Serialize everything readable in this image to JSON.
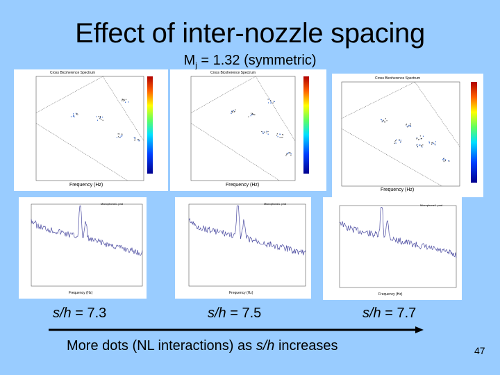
{
  "slide": {
    "title": "Effect of inter-nozzle spacing",
    "subtitle_main": "M",
    "subtitle_sub": "j",
    "subtitle_rest": " = 1.32 (symmetric)",
    "page_number": "47"
  },
  "bispectra": [
    {
      "plot_title": "Cross Bicoherence Spectrum",
      "xlabel": "Frequency (Hz)",
      "ylabel": "Frequency (Hz)"
    },
    {
      "plot_title": "Cross Bicoherence Spectrum",
      "xlabel": "Frequency (Hz)",
      "ylabel": "Frequency (Hz)"
    },
    {
      "plot_title": "Cross Bicoherence Spectrum",
      "xlabel": "Frequency (Hz)",
      "ylabel": "Frequency (Hz)"
    }
  ],
  "spectra": [
    {
      "legend": "Microphone1 .pnd",
      "xlabel": "Frequency (Hz)",
      "ylabel": "SPL (dB)"
    },
    {
      "legend": "Microphone1 .pnd",
      "xlabel": "Frequency (Hz)",
      "ylabel": "SPL (dB)"
    },
    {
      "legend": "Microphone1 .pnd",
      "xlabel": "Frequency (Hz)",
      "ylabel": "SPL (dB)"
    }
  ],
  "labels": [
    {
      "var": "s/h",
      "value": " = 7.3"
    },
    {
      "var": "s/h",
      "value": " = 7.5"
    },
    {
      "var": "s/h",
      "value": " = 7.7"
    }
  ],
  "caption": {
    "before": "More dots (NL interactions) as ",
    "var": "s/h",
    "after": " increases"
  },
  "colors": {
    "background": "#99ccff",
    "arrow": "#000000",
    "plot_line": "#4a4aa0"
  }
}
